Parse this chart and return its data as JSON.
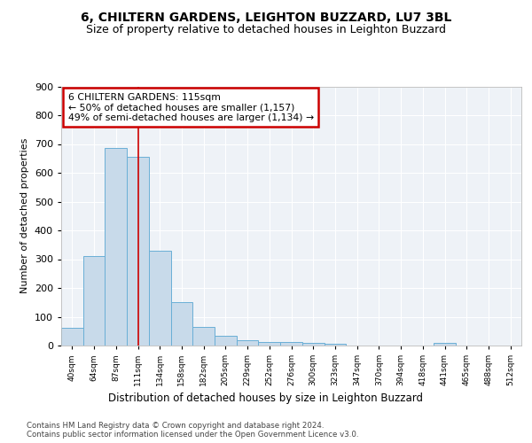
{
  "title1": "6, CHILTERN GARDENS, LEIGHTON BUZZARD, LU7 3BL",
  "title2": "Size of property relative to detached houses in Leighton Buzzard",
  "xlabel": "Distribution of detached houses by size in Leighton Buzzard",
  "ylabel": "Number of detached properties",
  "categories": [
    "40sqm",
    "64sqm",
    "87sqm",
    "111sqm",
    "134sqm",
    "158sqm",
    "182sqm",
    "205sqm",
    "229sqm",
    "252sqm",
    "276sqm",
    "300sqm",
    "323sqm",
    "347sqm",
    "370sqm",
    "394sqm",
    "418sqm",
    "441sqm",
    "465sqm",
    "488sqm",
    "512sqm"
  ],
  "values": [
    62,
    310,
    685,
    655,
    330,
    152,
    65,
    33,
    20,
    13,
    13,
    8,
    5,
    1,
    1,
    1,
    1,
    8,
    1,
    1,
    1
  ],
  "bar_color": "#c8daea",
  "bar_edge_color": "#6aafd6",
  "vline_x": 3.0,
  "vline_color": "#cc0000",
  "annotation_text": "6 CHILTERN GARDENS: 115sqm\n← 50% of detached houses are smaller (1,157)\n49% of semi-detached houses are larger (1,134) →",
  "annotation_box_color": "#cc0000",
  "ylim": [
    0,
    900
  ],
  "yticks": [
    0,
    100,
    200,
    300,
    400,
    500,
    600,
    700,
    800,
    900
  ],
  "footnote": "Contains HM Land Registry data © Crown copyright and database right 2024.\nContains public sector information licensed under the Open Government Licence v3.0.",
  "bg_color": "#eef2f7",
  "grid_color": "white",
  "title1_fontsize": 10,
  "title2_fontsize": 9
}
